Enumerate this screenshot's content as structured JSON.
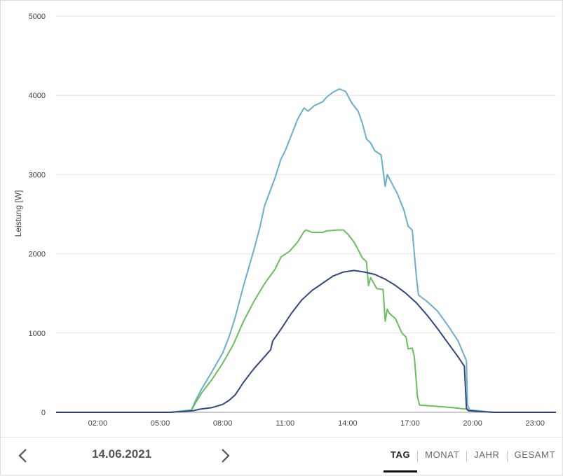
{
  "chart_data": {
    "type": "line",
    "ylabel": "Leistung [W]",
    "xlabel": "",
    "ylim": [
      0,
      5000
    ],
    "yticks": [
      0,
      1000,
      2000,
      3000,
      4000,
      5000
    ],
    "xlim": [
      0.0,
      24.0
    ],
    "xticks": [
      {
        "hour": 2,
        "label": "02:00"
      },
      {
        "hour": 5,
        "label": "05:00"
      },
      {
        "hour": 8,
        "label": "08:00"
      },
      {
        "hour": 11,
        "label": "11:00"
      },
      {
        "hour": 14,
        "label": "14:00"
      },
      {
        "hour": 17,
        "label": "17:00"
      },
      {
        "hour": 20,
        "label": "20:00"
      },
      {
        "hour": 23,
        "label": "23:00"
      }
    ],
    "grid": true,
    "series": [
      {
        "color": "#6aaecf",
        "points": [
          [
            0.0,
            0
          ],
          [
            5.5,
            0
          ],
          [
            6.5,
            30
          ],
          [
            6.7,
            150
          ],
          [
            7.0,
            300
          ],
          [
            7.5,
            520
          ],
          [
            8.0,
            750
          ],
          [
            8.3,
            950
          ],
          [
            8.6,
            1200
          ],
          [
            9.0,
            1600
          ],
          [
            9.5,
            2050
          ],
          [
            9.8,
            2350
          ],
          [
            10.0,
            2600
          ],
          [
            10.5,
            2950
          ],
          [
            10.8,
            3200
          ],
          [
            11.0,
            3300
          ],
          [
            11.3,
            3500
          ],
          [
            11.6,
            3700
          ],
          [
            11.9,
            3840
          ],
          [
            12.1,
            3800
          ],
          [
            12.4,
            3870
          ],
          [
            12.8,
            3920
          ],
          [
            13.0,
            3980
          ],
          [
            13.3,
            4040
          ],
          [
            13.6,
            4080
          ],
          [
            13.9,
            4050
          ],
          [
            14.2,
            3900
          ],
          [
            14.5,
            3800
          ],
          [
            14.7,
            3650
          ],
          [
            14.9,
            3450
          ],
          [
            15.1,
            3400
          ],
          [
            15.3,
            3300
          ],
          [
            15.6,
            3250
          ],
          [
            15.8,
            2850
          ],
          [
            15.9,
            3000
          ],
          [
            16.1,
            2900
          ],
          [
            16.4,
            2750
          ],
          [
            16.7,
            2550
          ],
          [
            16.9,
            2350
          ],
          [
            17.1,
            2300
          ],
          [
            17.3,
            1700
          ],
          [
            17.4,
            1480
          ],
          [
            17.8,
            1400
          ],
          [
            18.3,
            1280
          ],
          [
            18.8,
            1100
          ],
          [
            19.3,
            900
          ],
          [
            19.7,
            650
          ],
          [
            19.75,
            100
          ],
          [
            19.85,
            30
          ],
          [
            21.0,
            0
          ],
          [
            24.0,
            0
          ]
        ]
      },
      {
        "color": "#6abf5a",
        "points": [
          [
            0.0,
            0
          ],
          [
            5.5,
            0
          ],
          [
            6.5,
            25
          ],
          [
            6.7,
            120
          ],
          [
            7.0,
            250
          ],
          [
            7.5,
            420
          ],
          [
            8.0,
            620
          ],
          [
            8.5,
            850
          ],
          [
            9.0,
            1150
          ],
          [
            9.5,
            1400
          ],
          [
            10.0,
            1620
          ],
          [
            10.5,
            1800
          ],
          [
            10.8,
            1960
          ],
          [
            11.2,
            2030
          ],
          [
            11.6,
            2150
          ],
          [
            11.9,
            2280
          ],
          [
            12.0,
            2300
          ],
          [
            12.3,
            2270
          ],
          [
            12.8,
            2270
          ],
          [
            13.0,
            2290
          ],
          [
            13.5,
            2300
          ],
          [
            13.8,
            2300
          ],
          [
            14.0,
            2250
          ],
          [
            14.3,
            2150
          ],
          [
            14.5,
            2050
          ],
          [
            14.7,
            1950
          ],
          [
            14.9,
            1900
          ],
          [
            15.0,
            1600
          ],
          [
            15.1,
            1700
          ],
          [
            15.4,
            1560
          ],
          [
            15.7,
            1550
          ],
          [
            15.8,
            1150
          ],
          [
            15.9,
            1300
          ],
          [
            16.0,
            1250
          ],
          [
            16.3,
            1180
          ],
          [
            16.6,
            1000
          ],
          [
            16.8,
            950
          ],
          [
            16.9,
            800
          ],
          [
            17.1,
            810
          ],
          [
            17.2,
            700
          ],
          [
            17.35,
            200
          ],
          [
            17.45,
            90
          ],
          [
            18.0,
            80
          ],
          [
            19.0,
            60
          ],
          [
            19.7,
            40
          ],
          [
            19.8,
            20
          ],
          [
            21.0,
            0
          ],
          [
            24.0,
            0
          ]
        ]
      },
      {
        "color": "#33467e",
        "points": [
          [
            0.0,
            0
          ],
          [
            5.5,
            0
          ],
          [
            6.6,
            20
          ],
          [
            6.9,
            40
          ],
          [
            7.5,
            60
          ],
          [
            8.0,
            100
          ],
          [
            8.3,
            150
          ],
          [
            8.6,
            220
          ],
          [
            9.0,
            380
          ],
          [
            9.5,
            550
          ],
          [
            10.0,
            700
          ],
          [
            10.3,
            790
          ],
          [
            10.4,
            900
          ],
          [
            10.8,
            1050
          ],
          [
            11.3,
            1250
          ],
          [
            11.8,
            1420
          ],
          [
            12.3,
            1540
          ],
          [
            12.8,
            1630
          ],
          [
            13.3,
            1720
          ],
          [
            13.8,
            1770
          ],
          [
            14.3,
            1790
          ],
          [
            14.8,
            1770
          ],
          [
            15.3,
            1740
          ],
          [
            15.8,
            1680
          ],
          [
            16.3,
            1600
          ],
          [
            16.8,
            1500
          ],
          [
            17.3,
            1380
          ],
          [
            17.8,
            1230
          ],
          [
            18.3,
            1060
          ],
          [
            18.8,
            880
          ],
          [
            19.3,
            700
          ],
          [
            19.6,
            580
          ],
          [
            19.7,
            50
          ],
          [
            19.8,
            20
          ],
          [
            21.0,
            0
          ],
          [
            24.0,
            0
          ]
        ]
      }
    ]
  },
  "footer": {
    "date": "14.06.2021",
    "tabs": [
      "TAG",
      "MONAT",
      "JAHR",
      "GESAMT"
    ],
    "active_tab": "TAG"
  }
}
